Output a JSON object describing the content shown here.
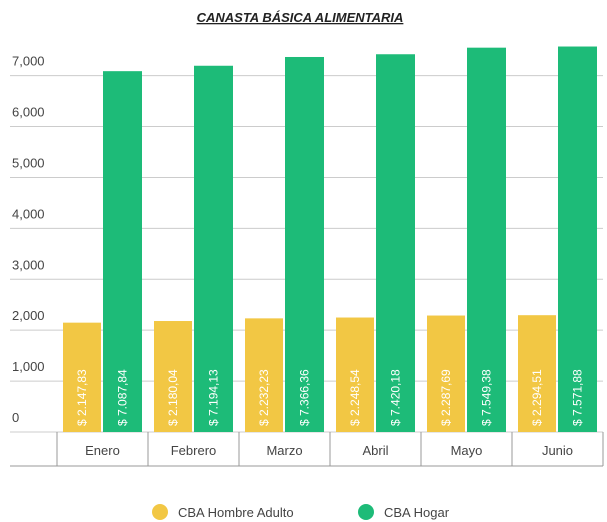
{
  "chart_data": {
    "type": "bar",
    "title": "CANASTA BÁSICA ALIMENTARIA",
    "categories": [
      "Enero",
      "Febrero",
      "Marzo",
      "Abril",
      "Mayo",
      "Junio"
    ],
    "series": [
      {
        "name": "CBA Hombre Adulto",
        "color": "#f2c744",
        "values": [
          2147.83,
          2180.04,
          2232.23,
          2248.54,
          2287.69,
          2294.51
        ],
        "value_labels": [
          "$ 2.147,83",
          "$ 2.180,04",
          "$ 2.232,23",
          "$ 2.248,54",
          "$ 2.287,69",
          "$ 2.294,51"
        ]
      },
      {
        "name": "CBA Hogar",
        "color": "#1dbb78",
        "values": [
          7087.84,
          7194.13,
          7366.36,
          7420.18,
          7549.38,
          7571.88
        ],
        "value_labels": [
          "$ 7.087,84",
          "$ 7.194,13",
          "$ 7.366,36",
          "$ 7.420,18",
          "$ 7.549,38",
          "$ 7.571,88"
        ]
      }
    ],
    "ylim": [
      0,
      7700
    ],
    "yticks": [
      0,
      {
        "value": 1000,
        "label": "1,000"
      },
      {
        "value": 2000,
        "label": "2,000"
      },
      {
        "value": 3000,
        "label": "3,000"
      },
      {
        "value": 4000,
        "label": "4,000"
      },
      {
        "value": 5000,
        "label": "5,000"
      },
      {
        "value": 6000,
        "label": "6,000"
      },
      {
        "value": 7000,
        "label": "7,000"
      }
    ],
    "grid": true
  }
}
